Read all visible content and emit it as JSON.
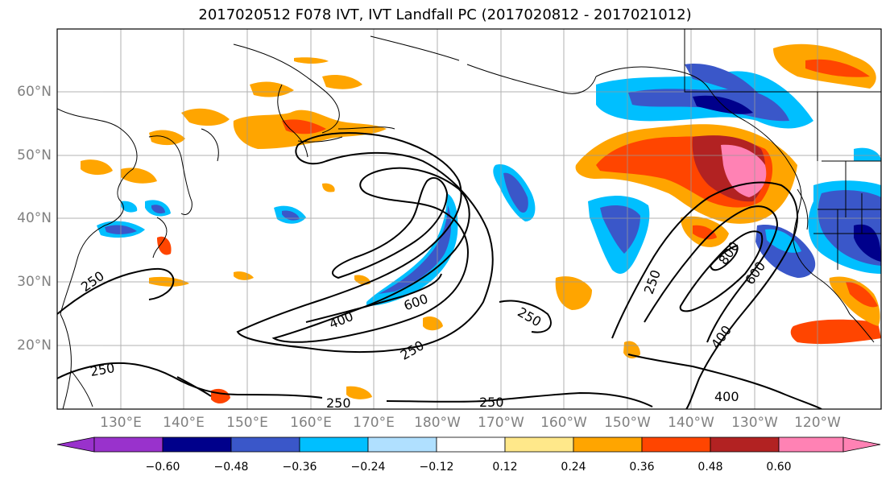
{
  "title": "2017020512 F078 IVT, IVT Landfall PC (2017020812 - 2017021012)",
  "latitude_labels": [
    "60°N",
    "50°N",
    "40°N",
    "30°N",
    "20°N"
  ],
  "longitude_labels": [
    "130°E",
    "140°E",
    "150°E",
    "160°E",
    "170°E",
    "180°W",
    "170°W",
    "160°W",
    "150°W",
    "140°W",
    "130°W",
    "120°W"
  ],
  "contour_labels": [
    "250",
    "250",
    "250",
    "250",
    "250",
    "250",
    "250",
    "400",
    "400",
    "400",
    "600",
    "600",
    "800"
  ],
  "colorbar": {
    "ticks": [
      "−0.60",
      "−0.48",
      "−0.36",
      "−0.24",
      "−0.12",
      "0.12",
      "0.24",
      "0.36",
      "0.48",
      "0.60"
    ],
    "colors": [
      "#9932cc",
      "#00008b",
      "#3a57c9",
      "#00bfff",
      "#b0e0ff",
      "#ffffff",
      "#ffe88a",
      "#ffa500",
      "#ff4500",
      "#b22222",
      "#ff82b4"
    ]
  },
  "legend_colors": {
    "negative_strong": "#00008b",
    "negative_mid": "#3a57c9",
    "negative_light": "#00bfff",
    "negative_pale": "#b0e0ff",
    "positive_pale": "#ffe88a",
    "positive_mid": "#ffa500",
    "positive_strong": "#ff4500",
    "positive_darker": "#b22222",
    "positive_max": "#ff82b4"
  }
}
